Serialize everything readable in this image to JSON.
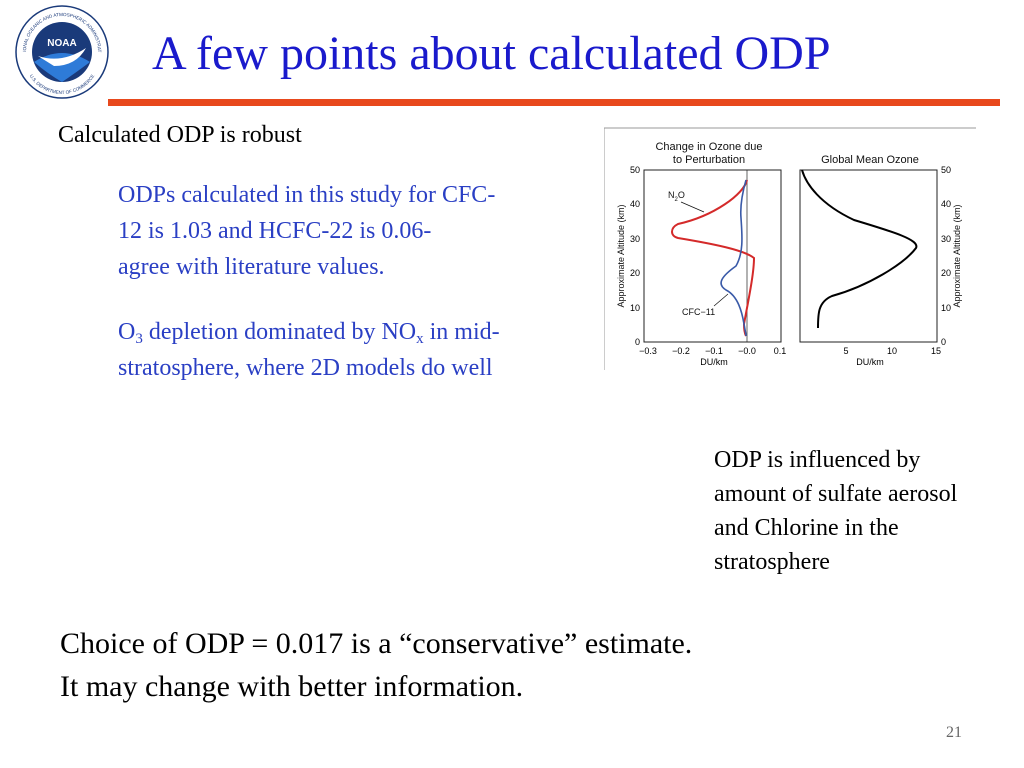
{
  "slide": {
    "title": "A few points about calculated ODP",
    "page_number": "21",
    "accent_color": "#e8491d",
    "title_color": "#1a1acc",
    "body_blue": "#2a3fc4"
  },
  "logo": {
    "center_text": "NOAA",
    "ring_text_top": "NATIONAL OCEANIC AND ATMOSPHERIC ADMINISTRATION",
    "ring_text_bottom": "U.S. DEPARTMENT OF COMMERCE"
  },
  "left": {
    "heading": "Calculated ODP is robust",
    "para1_lines": [
      "ODPs calculated in this study for CFC-",
      "12 is  1.03 and HCFC-22 is 0.06-",
      "agree with literature values."
    ],
    "para2": {
      "o": "O",
      "o_sub": "3",
      "mid": " depletion dominated by NO",
      "nox_sub": "x",
      "end": " in mid-",
      "line2": "stratosphere, where 2D models do well"
    }
  },
  "right": {
    "lines": [
      "ODP is influenced by",
      "amount of sulfate aerosol",
      "and Chlorine  in the",
      "stratosphere"
    ]
  },
  "bottom": {
    "lines": [
      "Choice of ODP = 0.017 is a “conservative” estimate.",
      "It may change with better information."
    ]
  },
  "figure": {
    "left_panel": {
      "title_line1": "Change in Ozone due",
      "title_line2": "to Perturbation",
      "xlabel": "DU/km",
      "ylabel": "Approximate Altitude (km)",
      "xticks": [
        "−0.3",
        "−0.2",
        "−0.1",
        "−0.0",
        "0.1"
      ],
      "yticks": [
        "0",
        "10",
        "20",
        "30",
        "40",
        "50"
      ],
      "label_n2o": "N",
      "label_n2o_sub": "2",
      "label_n2o_end": "O",
      "label_cfc": "CFC−11"
    },
    "right_panel": {
      "title": "Global Mean Ozone",
      "xlabel": "DU/km",
      "ylabel": "Approximate Altitude (km)",
      "xticks": [
        "5",
        "10",
        "15"
      ],
      "yticks": [
        "0",
        "10",
        "20",
        "30",
        "40",
        "50"
      ]
    },
    "series_colors": {
      "n2o": "#d42a2a",
      "cfc11": "#3a5aa8",
      "ozone": "#000000"
    }
  }
}
